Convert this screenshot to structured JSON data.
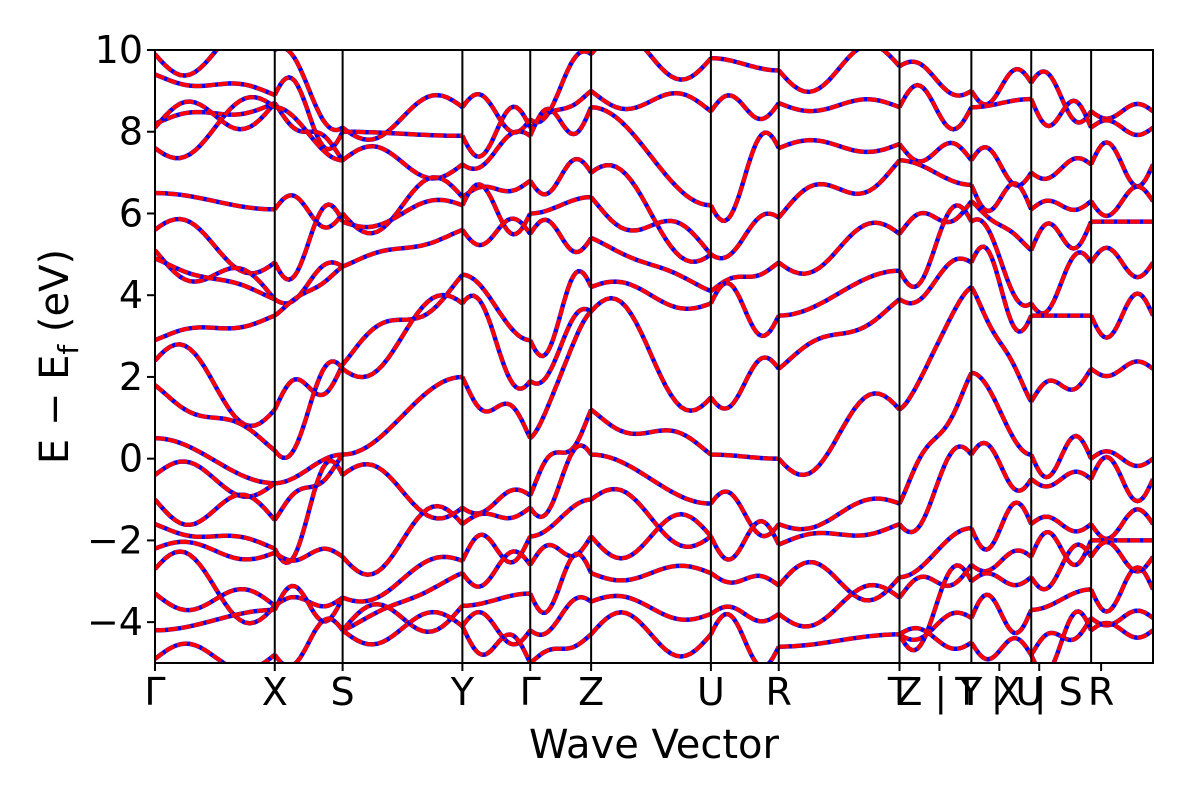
{
  "chart_data": {
    "type": "line",
    "xlabel": "Wave Vector",
    "ylabel_main": "E − E",
    "ylabel_sub": "f",
    "ylabel_unit": " (eV)",
    "ylim": [
      -5,
      10
    ],
    "y_ticks": [
      {
        "value": 10,
        "label": "10"
      },
      {
        "value": 8,
        "label": "8"
      },
      {
        "value": 6,
        "label": "6"
      },
      {
        "value": 4,
        "label": "4"
      },
      {
        "value": 2,
        "label": "2"
      },
      {
        "value": 0,
        "label": "0"
      },
      {
        "value": -2,
        "label": "−2"
      },
      {
        "value": -4,
        "label": "−4"
      }
    ],
    "grid": false,
    "colors": {
      "series_a": "#ff0000",
      "series_b": "#0000ff",
      "lines": "#000000"
    },
    "x_ticks": [
      {
        "value": 0.0,
        "label": "Γ"
      },
      {
        "value": 1.2,
        "label": "X"
      },
      {
        "value": 1.88,
        "label": "S"
      },
      {
        "value": 3.08,
        "label": "Y"
      },
      {
        "value": 3.76,
        "label": "Γ"
      },
      {
        "value": 4.37,
        "label": "Z"
      },
      {
        "value": 5.57,
        "label": "U"
      },
      {
        "value": 6.25,
        "label": "R"
      },
      {
        "value": 7.46,
        "label": "T"
      },
      {
        "value": 7.86,
        "label": "Z | Y"
      },
      {
        "value": 8.46,
        "label": "T | U"
      },
      {
        "value": 8.86,
        "label": "X | S"
      },
      {
        "value": 9.48,
        "label": "R"
      }
    ],
    "xlim": [
      0,
      10
    ],
    "segments": [
      {
        "start": 0.0,
        "end": 1.2
      },
      {
        "start": 1.2,
        "end": 1.88
      },
      {
        "start": 1.88,
        "end": 3.08
      },
      {
        "start": 3.08,
        "end": 3.76
      },
      {
        "start": 3.76,
        "end": 4.37
      },
      {
        "start": 4.37,
        "end": 5.57
      },
      {
        "start": 5.57,
        "end": 6.25
      },
      {
        "start": 6.25,
        "end": 7.46
      },
      {
        "start": 7.46,
        "end": 8.18
      },
      {
        "start": 8.18,
        "end": 8.78
      },
      {
        "start": 8.78,
        "end": 9.38
      },
      {
        "start": 9.38,
        "end": 10.0
      }
    ],
    "bands_note_values": [
      [
        9.9,
        9.4,
        8.2,
        8.1,
        7.6,
        6.5,
        5.6,
        5.1,
        4.9,
        2.9,
        2.4,
        1.8,
        0.5,
        -0.4,
        -1.0,
        -1.6,
        -2.2,
        -2.7,
        -3.3,
        -4.2,
        -4.9
      ],
      [
        10.0,
        8.9,
        8.7,
        8.6,
        6.1,
        4.8,
        3.9,
        3.5,
        1.2,
        0.2,
        -0.6,
        -1.5,
        -2.2,
        -2.3,
        -3.6,
        -3.7,
        -4.8
      ],
      [
        8.1,
        8.0,
        7.3,
        6.0,
        5.8,
        4.7,
        2.3,
        2.2,
        0.1,
        -0.4,
        -2.4,
        -3.4,
        -4.2
      ],
      [
        8.6,
        7.9,
        7.2,
        6.4,
        6.2,
        5.6,
        4.5,
        3.8,
        2.0,
        -1.2,
        -1.6,
        -2.5,
        -2.8,
        -3.6,
        -4.1
      ],
      [
        8.3,
        8.1,
        7.9,
        6.8,
        6.0,
        5.5,
        2.9,
        1.9,
        0.5,
        -0.9,
        -1.2,
        -1.9,
        -2.6,
        -3.3,
        -4.2,
        -5.0
      ],
      [
        9.9,
        9.0,
        8.6,
        7.0,
        6.4,
        5.4,
        4.2,
        3.6,
        1.2,
        0.1,
        -1.0,
        -1.9,
        -2.8,
        -3.5,
        -4.3
      ],
      [
        9.8,
        8.5,
        6.2,
        5.0,
        4.1,
        3.8,
        1.5,
        0.1,
        -1.1,
        -1.9,
        -2.8,
        -3.8,
        -4.3
      ],
      [
        9.5,
        8.7,
        7.6,
        5.9,
        4.8,
        3.5,
        2.2,
        0.0,
        -1.6,
        -2.1,
        -3.1,
        -3.8,
        -4.6
      ],
      [
        9.6,
        8.6,
        7.7,
        7.3,
        5.5,
        4.6,
        3.9,
        1.2,
        -1.1,
        -1.6,
        -2.9,
        -3.4,
        -4.3
      ],
      [
        9.0,
        8.6,
        7.3,
        6.7,
        6.3,
        5.8,
        4.8,
        4.2,
        2.1,
        0.1,
        -1.7,
        -2.6,
        -3.0,
        -3.9,
        -4.5
      ],
      [
        9.2,
        8.8,
        7.0,
        6.1,
        5.1,
        3.8,
        3.5,
        1.4,
        0.1,
        -0.5,
        -1.6,
        -2.4,
        -2.9,
        -3.7,
        -4.8
      ],
      [
        8.5,
        8.1,
        7.2,
        6.3,
        5.8,
        4.8,
        3.5,
        2.2,
        0.0,
        -0.5,
        -1.6,
        -2.0,
        -2.4,
        -3.2,
        -3.9,
        -4.2
      ]
    ]
  }
}
